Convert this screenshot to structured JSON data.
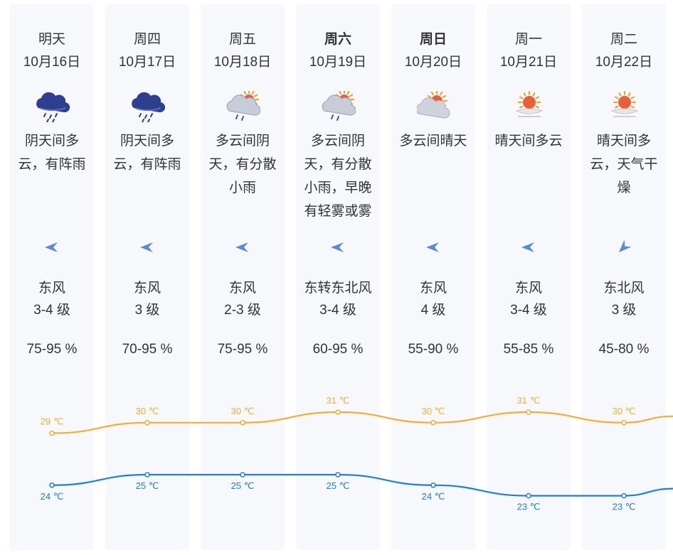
{
  "days": [
    {
      "day": "明天",
      "date": "10月16日",
      "bold": false,
      "icon": "rain-cloud-icon",
      "desc": [
        "阴天间多",
        "云，有阵雨"
      ],
      "wind_angle": 180,
      "wind_dir": "东风",
      "wind_level": "3-4 级",
      "humidity": "75-95 %"
    },
    {
      "day": "周四",
      "date": "10月17日",
      "bold": false,
      "icon": "rain-cloud-icon",
      "desc": [
        "阴天间多",
        "云，有阵雨"
      ],
      "wind_angle": 180,
      "wind_dir": "东风",
      "wind_level": "3 级",
      "humidity": "70-95 %"
    },
    {
      "day": "周五",
      "date": "10月18日",
      "bold": false,
      "icon": "sun-cloud-rain-icon",
      "desc": [
        "多云间阴",
        "天，有分散",
        "小雨"
      ],
      "wind_angle": 180,
      "wind_dir": "东风",
      "wind_level": "2-3 级",
      "humidity": "75-95 %"
    },
    {
      "day": "周六",
      "date": "10月19日",
      "bold": true,
      "icon": "sun-cloud-rain-icon",
      "desc": [
        "多云间阴",
        "天，有分散",
        "小雨，早晚",
        "有轻雾或雾"
      ],
      "wind_angle": 180,
      "wind_dir": "东转东北风",
      "wind_level": "3-4 级",
      "humidity": "60-95 %"
    },
    {
      "day": "周日",
      "date": "10月20日",
      "bold": true,
      "icon": "sun-cloud-icon",
      "desc": [
        "多云间晴天"
      ],
      "wind_angle": 180,
      "wind_dir": "东风",
      "wind_level": "4 级",
      "humidity": "55-90 %"
    },
    {
      "day": "周一",
      "date": "10月21日",
      "bold": false,
      "icon": "sun-haze-icon",
      "desc": [
        "晴天间多云"
      ],
      "wind_angle": 180,
      "wind_dir": "东风",
      "wind_level": "3-4 级",
      "humidity": "55-85 %"
    },
    {
      "day": "周二",
      "date": "10月22日",
      "bold": false,
      "icon": "sun-haze-icon",
      "desc": [
        "晴天间多",
        "云，天气干",
        "燥"
      ],
      "wind_angle": 135,
      "wind_dir": "东北风",
      "wind_level": "3 级",
      "humidity": "45-80 %"
    }
  ],
  "temps": {
    "high": [
      29,
      30,
      30,
      31,
      30,
      31,
      30
    ],
    "low": [
      24,
      25,
      25,
      25,
      24,
      23,
      23
    ],
    "unit": "℃",
    "high_color": "#f0ad3a",
    "low_color": "#1f7fd8"
  },
  "colors": {
    "column_bg": "#f7f8fc",
    "wind_icon": "#5a8bd6"
  }
}
